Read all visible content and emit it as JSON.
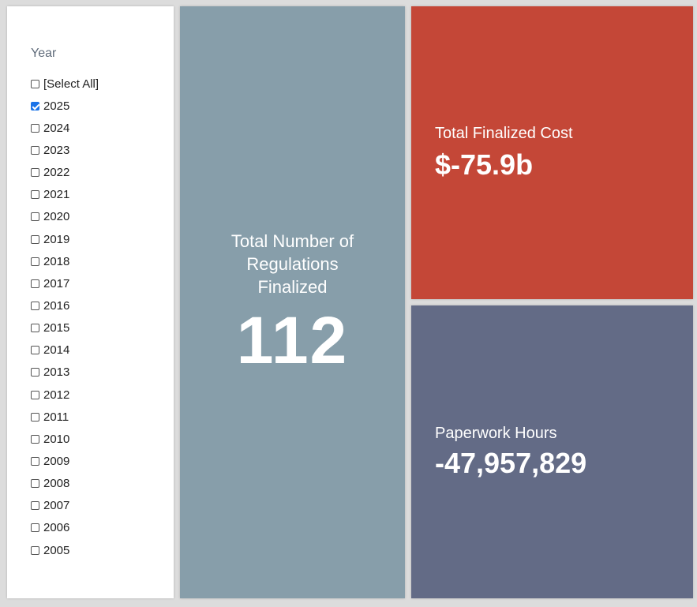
{
  "filter": {
    "title": "Year",
    "items": [
      {
        "label": "[Select All]",
        "checked": false
      },
      {
        "label": "2025",
        "checked": true
      },
      {
        "label": "2024",
        "checked": false
      },
      {
        "label": "2023",
        "checked": false
      },
      {
        "label": "2022",
        "checked": false
      },
      {
        "label": "2021",
        "checked": false
      },
      {
        "label": "2020",
        "checked": false
      },
      {
        "label": "2019",
        "checked": false
      },
      {
        "label": "2018",
        "checked": false
      },
      {
        "label": "2017",
        "checked": false
      },
      {
        "label": "2016",
        "checked": false
      },
      {
        "label": "2015",
        "checked": false
      },
      {
        "label": "2014",
        "checked": false
      },
      {
        "label": "2013",
        "checked": false
      },
      {
        "label": "2012",
        "checked": false
      },
      {
        "label": "2011",
        "checked": false
      },
      {
        "label": "2010",
        "checked": false
      },
      {
        "label": "2009",
        "checked": false
      },
      {
        "label": "2008",
        "checked": false
      },
      {
        "label": "2007",
        "checked": false
      },
      {
        "label": "2006",
        "checked": false
      },
      {
        "label": "2005",
        "checked": false
      }
    ]
  },
  "regulations": {
    "label": "Total Number of Regulations Finalized",
    "value": "112",
    "color": "#879eaa"
  },
  "cost": {
    "label": "Total Finalized Cost",
    "value": "$-75.9b",
    "color": "#c44737"
  },
  "hours": {
    "label": "Paperwork Hours",
    "value": "-47,957,829",
    "color": "#636b86"
  }
}
